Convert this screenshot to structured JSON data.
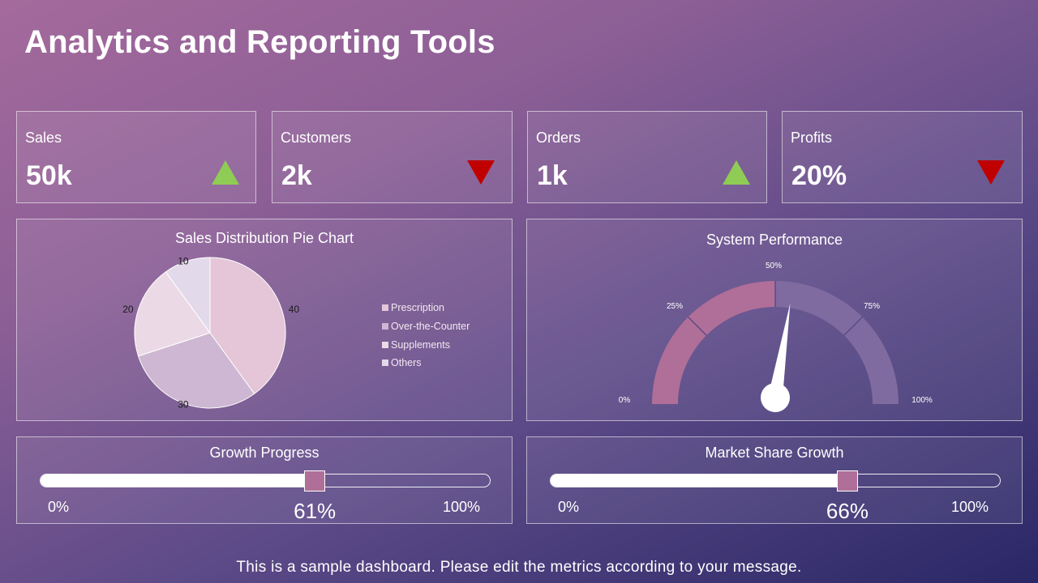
{
  "title": "Analytics and Reporting Tools",
  "kpis": [
    {
      "label": "Sales",
      "value": "50k",
      "trend": "up"
    },
    {
      "label": "Customers",
      "value": "2k",
      "trend": "down"
    },
    {
      "label": "Orders",
      "value": "1k",
      "trend": "up"
    },
    {
      "label": "Profits",
      "value": "20%",
      "trend": "down"
    }
  ],
  "colors": {
    "up": "#8fcc55",
    "down": "#c00000",
    "accent": "#b06f98",
    "gauge_rest": "#7f6ba0"
  },
  "pie": {
    "title": "Sales Distribution Pie Chart"
  },
  "gauge": {
    "title": "System Performance",
    "tick_labels": [
      "0%",
      "25%",
      "50%",
      "75%",
      "100%"
    ]
  },
  "growth": {
    "title": "Growth Progress",
    "min_label": "0%",
    "max_label": "100%",
    "value": 61,
    "value_label": "61%"
  },
  "market": {
    "title": "Market Share Growth",
    "min_label": "0%",
    "max_label": "100%",
    "value": 66,
    "value_label": "66%"
  },
  "footer": "This is a sample dashboard. Please edit the metrics according to your message.",
  "chart_data": [
    {
      "type": "pie",
      "title": "Sales Distribution Pie Chart",
      "categories": [
        "Prescription",
        "Over-the-Counter",
        "Supplements",
        "Others"
      ],
      "values": [
        40,
        30,
        20,
        10
      ],
      "colors": [
        "#e4c6d8",
        "#cdb7d2",
        "#ecd9e6",
        "#e2d9ea"
      ],
      "legend": "right"
    },
    {
      "type": "gauge",
      "title": "System Performance",
      "range": [
        0,
        100
      ],
      "value": 55,
      "filled": 50,
      "ticks": [
        "0%",
        "25%",
        "50%",
        "75%",
        "100%"
      ]
    }
  ]
}
